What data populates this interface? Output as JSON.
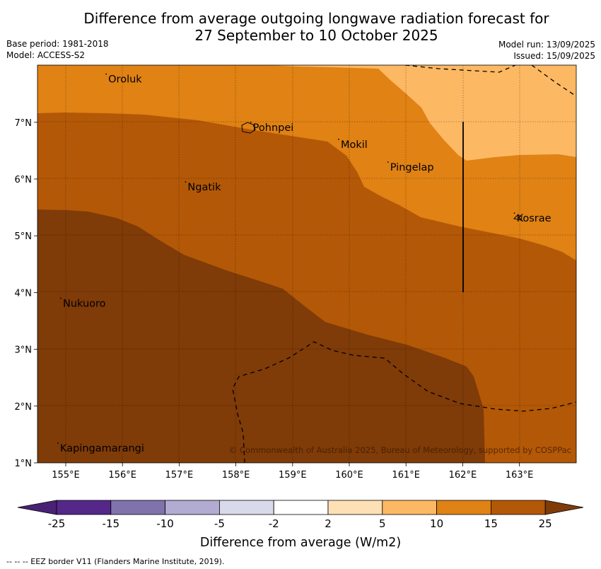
{
  "header": {
    "title_line1": "Difference from average outgoing longwave radiation forecast for",
    "title_line2": "27 September to 10 October 2025",
    "base_period": "Base period: 1981-2018",
    "model": "Model: ACCESS-S2",
    "model_run": "Model run: 13/09/2025",
    "issued": "Issued: 15/09/2025"
  },
  "map": {
    "lat_ticks": [
      "1°N",
      "2°N",
      "3°N",
      "4°N",
      "5°N",
      "6°N",
      "7°N"
    ],
    "lon_ticks": [
      "155°E",
      "156°E",
      "157°E",
      "158°E",
      "159°E",
      "160°E",
      "161°E",
      "162°E",
      "163°E"
    ],
    "places": [
      {
        "name": "Oroluk",
        "lon": 155.75,
        "lat": 7.7
      },
      {
        "name": "Pohnpei",
        "lon": 158.3,
        "lat": 6.85
      },
      {
        "name": "Mokil",
        "lon": 159.85,
        "lat": 6.55
      },
      {
        "name": "Pingelap",
        "lon": 160.72,
        "lat": 6.15
      },
      {
        "name": "Ngatik",
        "lon": 157.15,
        "lat": 5.8
      },
      {
        "name": "Kosrae",
        "lon": 162.95,
        "lat": 5.25
      },
      {
        "name": "Nukuoro",
        "lon": 154.95,
        "lat": 3.75
      },
      {
        "name": "Kapingamarangi",
        "lon": 154.9,
        "lat": 1.2
      }
    ],
    "copyright": "© Commonwealth of Australia 2025, Bureau of Meteorology, supported by COSPPac"
  },
  "colorbar": {
    "labels": [
      "-25",
      "-15",
      "-10",
      "-5",
      "-2",
      "2",
      "5",
      "10",
      "15",
      "25"
    ],
    "colors": [
      "#4a2275",
      "#542788",
      "#8073ac",
      "#b2abd2",
      "#d8daeb",
      "#ffffff",
      "#fee0b6",
      "#fdb863",
      "#e08214",
      "#b35806",
      "#7f3b08"
    ],
    "title": "Difference from average (W/m2)"
  },
  "footer": {
    "eez_note": "--  --  -- EEZ border V11 (Flanders Marine Institute, 2019)."
  }
}
